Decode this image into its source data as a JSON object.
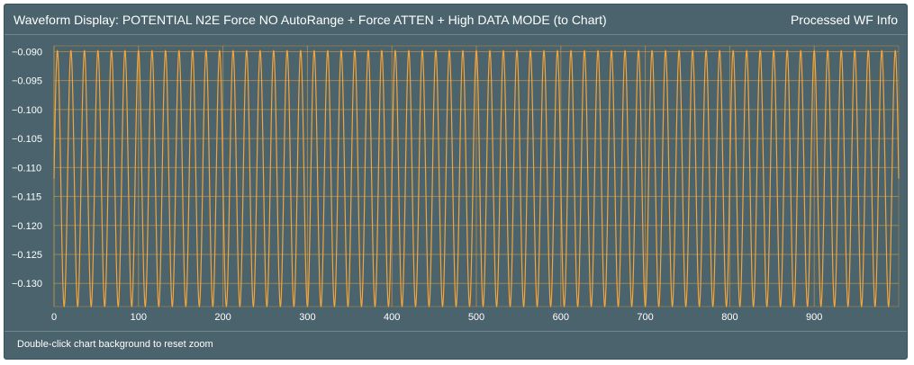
{
  "panel": {
    "title": "Waveform Display: POTENTIAL N2E Force NO AutoRange + Force ATTEN + High DATA MODE (to Chart)",
    "info_link": "Processed WF Info",
    "hint": "Double-click chart background to reset zoom"
  },
  "colors": {
    "panel_bg": "#4a636d",
    "grid": "#e8a23a",
    "trace": "#f3a43b",
    "text": "#ffffff"
  },
  "chart_data": {
    "type": "line",
    "title": "",
    "xlabel": "",
    "ylabel": "",
    "xlim": [
      0,
      1000
    ],
    "ylim": [
      -0.134,
      -0.089
    ],
    "x_ticks": [
      0,
      100,
      200,
      300,
      400,
      500,
      600,
      700,
      800,
      900
    ],
    "y_ticks": [
      -0.09,
      -0.095,
      -0.1,
      -0.105,
      -0.11,
      -0.115,
      -0.12,
      -0.125,
      -0.13
    ],
    "x_tick_labels": [
      "0",
      "100",
      "200",
      "300",
      "400",
      "500",
      "600",
      "700",
      "800",
      "900"
    ],
    "y_tick_labels": [
      "−0.090",
      "−0.095",
      "−0.100",
      "−0.105",
      "−0.110",
      "−0.115",
      "−0.120",
      "−0.125",
      "−0.130"
    ],
    "grid": true,
    "series": [
      {
        "waveform": "sine",
        "x_start": 0,
        "x_end": 1000,
        "center": -0.1119,
        "amplitude": 0.0221,
        "period": 16,
        "phase_deg": 0,
        "color": "#f3a43b"
      }
    ]
  }
}
